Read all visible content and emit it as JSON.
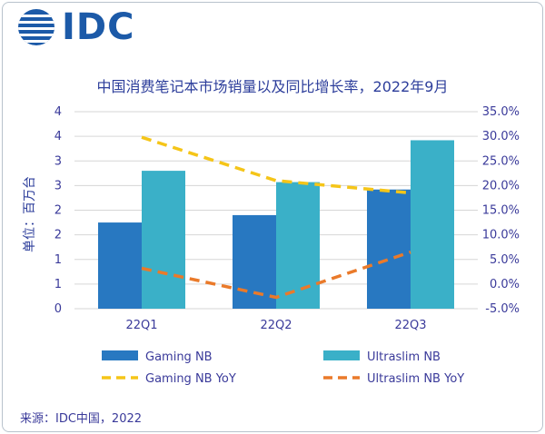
{
  "logo": {
    "text": "IDC"
  },
  "footer": {
    "source": "来源：IDC中国，2022"
  },
  "chart_data": {
    "type": "bar",
    "title": "中国消费笔记本市场销量以及同比增长率，2022年9月",
    "ylabel": "单位：百万台",
    "categories": [
      "22Q1",
      "22Q2",
      "22Q3"
    ],
    "y_left": {
      "range": [
        0,
        4
      ],
      "ticks": [
        0,
        0.5,
        1,
        1.5,
        2,
        2.5,
        3,
        3.5,
        4
      ],
      "tick_labels": [
        "0",
        "1",
        "1",
        "2",
        "2",
        "3",
        "3",
        "4",
        "4"
      ]
    },
    "y_right": {
      "range": [
        -5,
        35
      ],
      "ticks": [
        -5,
        0,
        5,
        10,
        15,
        20,
        25,
        30,
        35
      ],
      "tick_labels": [
        "-5.0%",
        "0.0%",
        "5.0%",
        "10.0%",
        "15.0%",
        "20.0%",
        "25.0%",
        "30.0%",
        "35.0%"
      ]
    },
    "grid": true,
    "legend_position": "bottom",
    "series": [
      {
        "name": "Gaming NB",
        "kind": "bar",
        "axis": "left",
        "color": "#2878c1",
        "values": [
          1.75,
          1.9,
          2.42
        ]
      },
      {
        "name": "Ultraslim NB",
        "kind": "bar",
        "axis": "left",
        "color": "#3ab0c8",
        "values": [
          2.8,
          2.57,
          3.42
        ]
      },
      {
        "name": "Gaming NB YoY",
        "kind": "line",
        "axis": "right",
        "color": "#f5c518",
        "values": [
          29.8,
          21.0,
          18.5
        ]
      },
      {
        "name": "Ultraslim NB YoY",
        "kind": "line",
        "axis": "right",
        "color": "#ea7a2a",
        "values": [
          3.2,
          -2.7,
          6.5
        ]
      }
    ]
  }
}
